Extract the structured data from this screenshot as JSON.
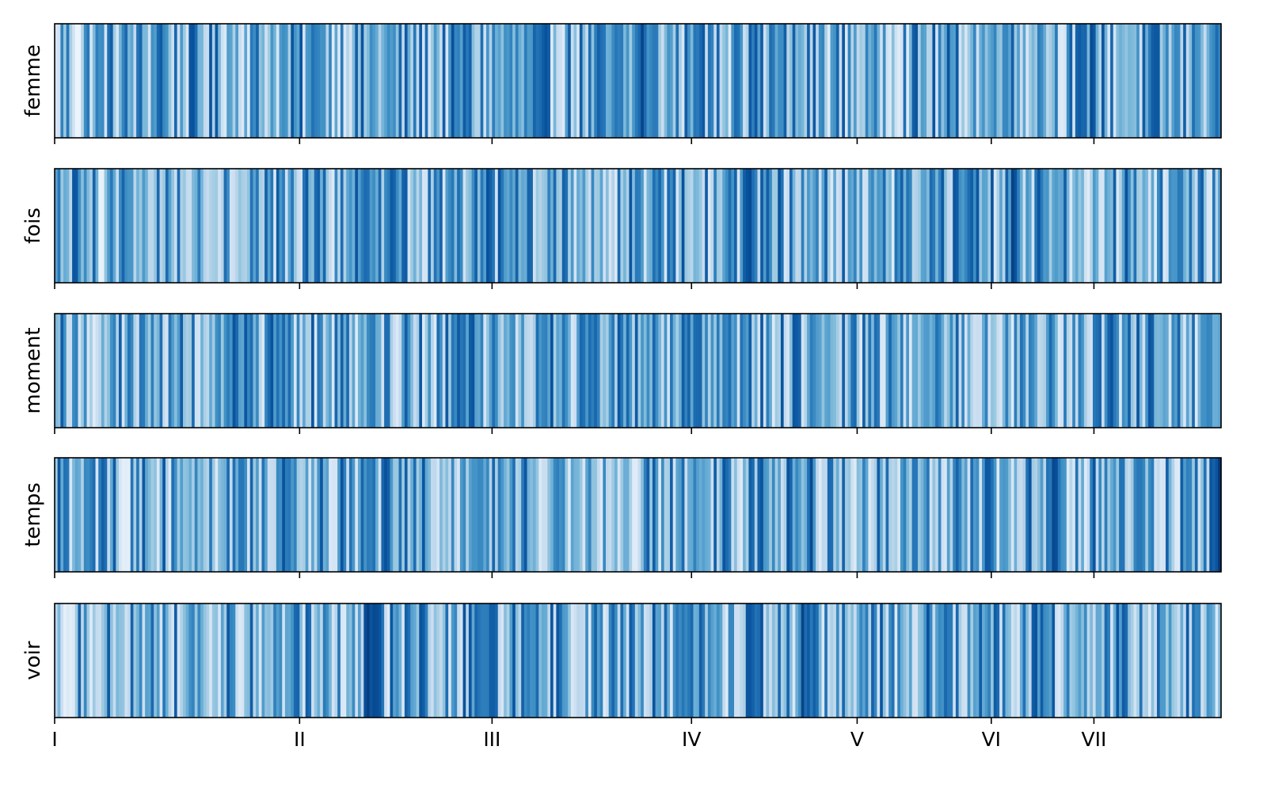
{
  "chart_data": {
    "type": "heatmap",
    "colormap": "Blues",
    "grid": false,
    "xtick_labels": [
      "I",
      "II",
      "III",
      "IV",
      "V",
      "VI",
      "VII"
    ],
    "xtick_positions": [
      0.0,
      0.21,
      0.375,
      0.546,
      0.688,
      0.803,
      0.891
    ],
    "n_segments": 400,
    "rows": [
      {
        "label": "femme",
        "hotspots": [
          [
            0.0,
            0.05
          ],
          [
            0.02,
            0.0
          ],
          [
            0.09,
            0.9
          ],
          [
            0.227,
            0.75
          ],
          [
            0.352,
            0.85
          ],
          [
            0.503,
            0.97
          ],
          [
            0.51,
            0.7
          ],
          [
            0.55,
            0.85
          ],
          [
            0.585,
            0.9
          ],
          [
            0.615,
            0.75
          ],
          [
            0.6,
            0.85
          ],
          [
            0.7,
            0.5
          ],
          [
            0.815,
            0.8
          ],
          [
            0.845,
            0.7
          ],
          [
            0.89,
            0.95
          ],
          [
            0.98,
            0.7
          ],
          [
            0.995,
            0.75
          ]
        ]
      },
      {
        "label": "fois",
        "hotspots": [
          [
            0.04,
            0.05
          ],
          [
            0.265,
            0.8
          ],
          [
            0.34,
            0.7
          ],
          [
            0.58,
            0.75
          ],
          [
            0.596,
            0.9
          ],
          [
            0.65,
            0.55
          ],
          [
            0.78,
            0.7
          ],
          [
            0.823,
            0.97
          ],
          [
            0.85,
            0.65
          ],
          [
            0.885,
            0.1
          ],
          [
            0.96,
            0.7
          ]
        ]
      },
      {
        "label": "moment",
        "hotspots": [
          [
            0.035,
            0.05
          ],
          [
            0.27,
            0.75
          ],
          [
            0.35,
            0.85
          ],
          [
            0.44,
            0.75
          ],
          [
            0.445,
            0.1
          ],
          [
            0.46,
            0.85
          ],
          [
            0.55,
            0.8
          ],
          [
            0.65,
            0.7
          ],
          [
            0.79,
            0.1
          ],
          [
            0.94,
            0.97
          ],
          [
            0.99,
            0.7
          ]
        ]
      },
      {
        "label": "temps",
        "hotspots": [
          [
            0.06,
            0.05
          ],
          [
            0.2,
            0.85
          ],
          [
            0.27,
            0.75
          ],
          [
            0.36,
            0.7
          ],
          [
            0.5,
            0.1
          ],
          [
            0.55,
            0.65
          ],
          [
            0.648,
            0.95
          ],
          [
            0.8,
            0.85
          ],
          [
            0.858,
            0.97
          ],
          [
            0.93,
            0.75
          ],
          [
            0.999,
            1.0
          ]
        ]
      },
      {
        "label": "voir",
        "hotspots": [
          [
            0.0,
            0.3
          ],
          [
            0.013,
            0.0
          ],
          [
            0.206,
            0.8
          ],
          [
            0.27,
            0.97
          ],
          [
            0.277,
            0.95
          ],
          [
            0.37,
            0.85
          ],
          [
            0.45,
            0.15
          ],
          [
            0.545,
            0.85
          ],
          [
            0.6,
            0.9
          ],
          [
            0.642,
            0.97
          ],
          [
            0.65,
            0.8
          ],
          [
            0.8,
            0.7
          ],
          [
            0.85,
            0.75
          ],
          [
            0.96,
            0.3
          ],
          [
            0.99,
            0.6
          ]
        ]
      }
    ]
  }
}
